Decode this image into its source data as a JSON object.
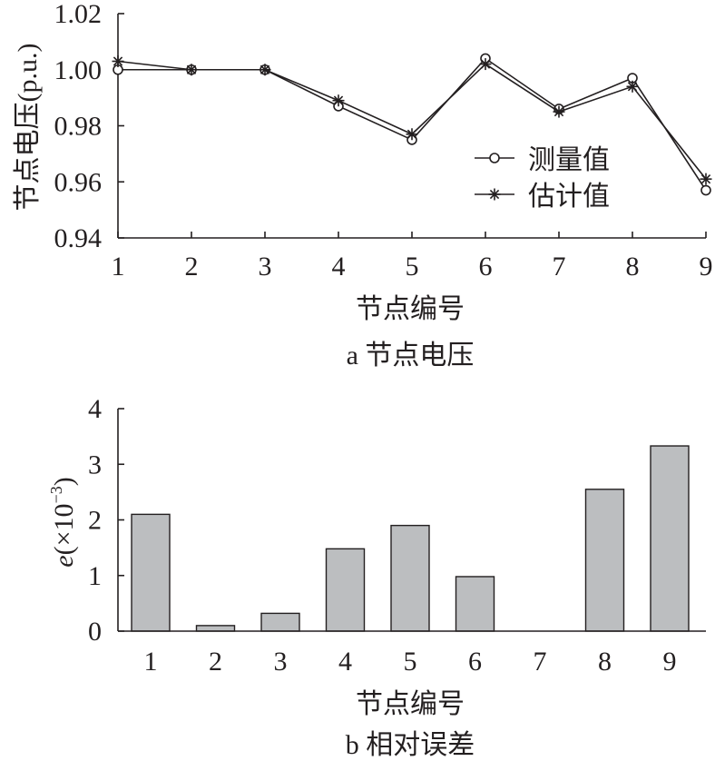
{
  "chart_data": [
    {
      "type": "line",
      "xlabel": "节点编号",
      "ylabel": "节点电压(p.u.)",
      "caption": "a 节点电压",
      "x": [
        1,
        2,
        3,
        4,
        5,
        6,
        7,
        8,
        9
      ],
      "xticks": [
        "1",
        "2",
        "3",
        "4",
        "5",
        "6",
        "7",
        "8",
        "9"
      ],
      "yticks": [
        "0.94",
        "0.96",
        "0.98",
        "1.00",
        "1.02"
      ],
      "xlim": [
        1,
        9
      ],
      "ylim": [
        0.94,
        1.02
      ],
      "grid": false,
      "legend_position": "right",
      "series": [
        {
          "name": "测量值",
          "marker": "circle",
          "values": [
            1.0,
            1.0,
            1.0,
            0.987,
            0.975,
            1.004,
            0.986,
            0.997,
            0.957
          ]
        },
        {
          "name": "估计值",
          "marker": "asterisk",
          "values": [
            1.003,
            1.0,
            1.0,
            0.989,
            0.977,
            1.002,
            0.985,
            0.994,
            0.961
          ]
        }
      ]
    },
    {
      "type": "bar",
      "xlabel": "节点编号",
      "ylabel_var": "e",
      "ylabel_rest": "(×10",
      "ylabel_exp": "−3",
      "ylabel_close": ")",
      "caption": "b 相对误差",
      "categories": [
        "1",
        "2",
        "3",
        "4",
        "5",
        "6",
        "7",
        "8",
        "9"
      ],
      "values": [
        2.1,
        0.1,
        0.32,
        1.48,
        1.9,
        0.98,
        0.0,
        2.55,
        3.33
      ],
      "yticks": [
        "0",
        "1",
        "2",
        "3",
        "4"
      ],
      "ylim": [
        0,
        4
      ],
      "bar_color": "#bcbec0",
      "grid": false
    }
  ]
}
